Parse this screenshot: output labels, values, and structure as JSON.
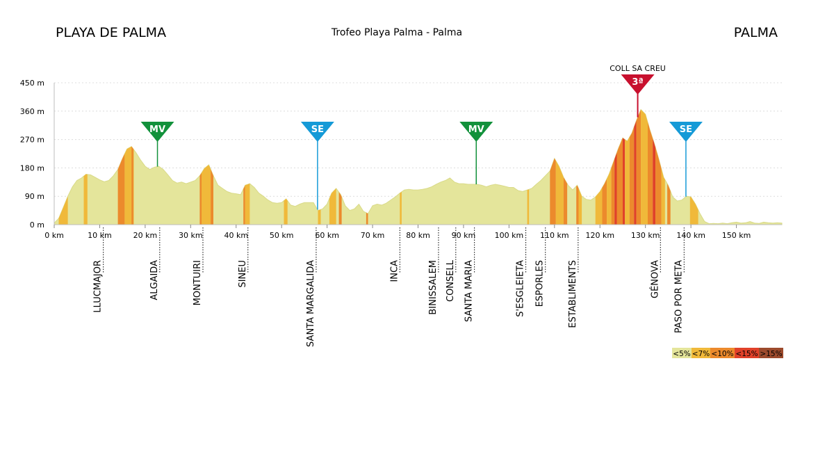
{
  "header": {
    "start": "PLAYA DE PALMA",
    "race": "Trofeo Playa Palma - Palma",
    "finish": "PALMA"
  },
  "colors": {
    "base": "#e4e59b",
    "lt7": "#f0b93a",
    "lt10": "#ec8a2c",
    "lt15": "#e0412a",
    "gt15": "#9c4a2c",
    "mv": "#12913b",
    "se": "#159ad7",
    "kom": "#c8102e"
  },
  "chart_data": {
    "type": "area",
    "xlabel": "",
    "ylabel": "",
    "xlim": [
      0,
      160
    ],
    "ylim": [
      0,
      450
    ],
    "xticks": [
      {
        "v": 0,
        "label": "0 km"
      },
      {
        "v": 10,
        "label": "10 km"
      },
      {
        "v": 20,
        "label": "20 km"
      },
      {
        "v": 30,
        "label": "30 km"
      },
      {
        "v": 40,
        "label": "40 km"
      },
      {
        "v": 50,
        "label": "50 km"
      },
      {
        "v": 60,
        "label": "60 km"
      },
      {
        "v": 70,
        "label": "70 km"
      },
      {
        "v": 80,
        "label": "80 km"
      },
      {
        "v": 90,
        "label": "90 km"
      },
      {
        "v": 100,
        "label": "100 km"
      },
      {
        "v": 110,
        "label": "110 km"
      },
      {
        "v": 120,
        "label": "120 km"
      },
      {
        "v": 130,
        "label": "130 km"
      },
      {
        "v": 140,
        "label": "140 km"
      },
      {
        "v": 150,
        "label": "150 km"
      }
    ],
    "yticks": [
      {
        "v": 0,
        "label": "0 m"
      },
      {
        "v": 90,
        "label": "90 m"
      },
      {
        "v": 180,
        "label": "180 m"
      },
      {
        "v": 270,
        "label": "270 m"
      },
      {
        "v": 360,
        "label": "360 m"
      },
      {
        "v": 450,
        "label": "450 m"
      }
    ],
    "grid": true,
    "profile": [
      [
        0,
        5
      ],
      [
        1,
        20
      ],
      [
        2,
        55
      ],
      [
        3,
        90
      ],
      [
        4,
        120
      ],
      [
        5,
        140
      ],
      [
        6,
        148
      ],
      [
        7,
        160
      ],
      [
        8,
        158
      ],
      [
        9,
        150
      ],
      [
        10,
        142
      ],
      [
        11,
        136
      ],
      [
        12,
        140
      ],
      [
        13,
        155
      ],
      [
        14,
        175
      ],
      [
        15,
        210
      ],
      [
        16,
        240
      ],
      [
        17,
        248
      ],
      [
        18,
        228
      ],
      [
        19,
        205
      ],
      [
        20,
        185
      ],
      [
        21,
        175
      ],
      [
        22,
        182
      ],
      [
        23,
        185
      ],
      [
        24,
        175
      ],
      [
        25,
        158
      ],
      [
        26,
        140
      ],
      [
        27,
        132
      ],
      [
        28,
        135
      ],
      [
        29,
        130
      ],
      [
        30,
        135
      ],
      [
        31,
        140
      ],
      [
        32,
        155
      ],
      [
        33,
        178
      ],
      [
        34,
        190
      ],
      [
        35,
        155
      ],
      [
        36,
        125
      ],
      [
        37,
        115
      ],
      [
        38,
        105
      ],
      [
        39,
        100
      ],
      [
        40,
        98
      ],
      [
        41,
        95
      ],
      [
        42,
        125
      ],
      [
        43,
        130
      ],
      [
        44,
        118
      ],
      [
        45,
        100
      ],
      [
        46,
        90
      ],
      [
        47,
        78
      ],
      [
        48,
        70
      ],
      [
        49,
        68
      ],
      [
        50,
        70
      ],
      [
        51,
        82
      ],
      [
        52,
        62
      ],
      [
        53,
        58
      ],
      [
        54,
        65
      ],
      [
        55,
        70
      ],
      [
        56,
        70
      ],
      [
        57,
        70
      ],
      [
        58,
        45
      ],
      [
        59,
        50
      ],
      [
        60,
        65
      ],
      [
        61,
        100
      ],
      [
        62,
        115
      ],
      [
        63,
        95
      ],
      [
        64,
        60
      ],
      [
        65,
        45
      ],
      [
        66,
        50
      ],
      [
        67,
        65
      ],
      [
        68,
        42
      ],
      [
        69,
        35
      ],
      [
        70,
        60
      ],
      [
        71,
        65
      ],
      [
        72,
        62
      ],
      [
        73,
        68
      ],
      [
        74,
        78
      ],
      [
        75,
        88
      ],
      [
        76,
        100
      ],
      [
        77,
        110
      ],
      [
        78,
        112
      ],
      [
        79,
        110
      ],
      [
        80,
        110
      ],
      [
        81,
        112
      ],
      [
        82,
        115
      ],
      [
        83,
        120
      ],
      [
        84,
        128
      ],
      [
        85,
        135
      ],
      [
        86,
        140
      ],
      [
        87,
        148
      ],
      [
        88,
        135
      ],
      [
        89,
        130
      ],
      [
        90,
        130
      ],
      [
        91,
        128
      ],
      [
        92,
        128
      ],
      [
        93,
        128
      ],
      [
        94,
        125
      ],
      [
        95,
        120
      ],
      [
        96,
        125
      ],
      [
        97,
        128
      ],
      [
        98,
        125
      ],
      [
        99,
        122
      ],
      [
        100,
        118
      ],
      [
        101,
        118
      ],
      [
        102,
        108
      ],
      [
        103,
        105
      ],
      [
        104,
        110
      ],
      [
        105,
        115
      ],
      [
        106,
        128
      ],
      [
        107,
        140
      ],
      [
        108,
        155
      ],
      [
        109,
        170
      ],
      [
        110,
        210
      ],
      [
        111,
        185
      ],
      [
        112,
        150
      ],
      [
        113,
        125
      ],
      [
        114,
        110
      ],
      [
        115,
        125
      ],
      [
        116,
        90
      ],
      [
        117,
        80
      ],
      [
        118,
        78
      ],
      [
        119,
        88
      ],
      [
        120,
        105
      ],
      [
        121,
        130
      ],
      [
        122,
        160
      ],
      [
        123,
        200
      ],
      [
        124,
        240
      ],
      [
        125,
        275
      ],
      [
        126,
        265
      ],
      [
        127,
        290
      ],
      [
        128,
        330
      ],
      [
        129,
        365
      ],
      [
        130,
        350
      ],
      [
        131,
        300
      ],
      [
        132,
        255
      ],
      [
        133,
        205
      ],
      [
        134,
        150
      ],
      [
        135,
        125
      ],
      [
        136,
        88
      ],
      [
        137,
        75
      ],
      [
        138,
        78
      ],
      [
        139,
        90
      ],
      [
        140,
        88
      ],
      [
        141,
        65
      ],
      [
        142,
        35
      ],
      [
        143,
        10
      ],
      [
        144,
        3
      ],
      [
        145,
        4
      ],
      [
        146,
        3
      ],
      [
        147,
        5
      ],
      [
        148,
        3
      ],
      [
        149,
        6
      ],
      [
        150,
        8
      ],
      [
        151,
        5
      ],
      [
        152,
        6
      ],
      [
        153,
        10
      ],
      [
        154,
        5
      ],
      [
        155,
        4
      ],
      [
        156,
        8
      ],
      [
        157,
        6
      ],
      [
        158,
        5
      ],
      [
        159,
        6
      ],
      [
        160,
        5
      ]
    ],
    "grade_bands": [
      {
        "from": 1,
        "to": 3,
        "grade": "lt7"
      },
      {
        "from": 6.5,
        "to": 7.3,
        "grade": "lt7"
      },
      {
        "from": 14,
        "to": 15.5,
        "grade": "lt10"
      },
      {
        "from": 15.5,
        "to": 17.5,
        "grade": "lt7"
      },
      {
        "from": 17,
        "to": 17.4,
        "grade": "lt10"
      },
      {
        "from": 32,
        "to": 32.4,
        "grade": "lt10"
      },
      {
        "from": 32.4,
        "to": 34.4,
        "grade": "lt7"
      },
      {
        "from": 34.4,
        "to": 35,
        "grade": "lt10"
      },
      {
        "from": 41.6,
        "to": 42,
        "grade": "lt10"
      },
      {
        "from": 42,
        "to": 43,
        "grade": "lt7"
      },
      {
        "from": 50.5,
        "to": 51.3,
        "grade": "lt7"
      },
      {
        "from": 58,
        "to": 58.6,
        "grade": "lt7"
      },
      {
        "from": 60.5,
        "to": 62,
        "grade": "lt7"
      },
      {
        "from": 62.6,
        "to": 63.2,
        "grade": "lt10"
      },
      {
        "from": 68.6,
        "to": 69,
        "grade": "lt10"
      },
      {
        "from": 76,
        "to": 76.4,
        "grade": "lt7"
      },
      {
        "from": 104,
        "to": 104.4,
        "grade": "lt7"
      },
      {
        "from": 109,
        "to": 110.3,
        "grade": "lt10"
      },
      {
        "from": 110.3,
        "to": 112,
        "grade": "lt7"
      },
      {
        "from": 112,
        "to": 112.8,
        "grade": "lt10"
      },
      {
        "from": 114.8,
        "to": 115.3,
        "grade": "lt10"
      },
      {
        "from": 115.3,
        "to": 116,
        "grade": "lt7"
      },
      {
        "from": 119,
        "to": 120.5,
        "grade": "lt7"
      },
      {
        "from": 120.5,
        "to": 121.5,
        "grade": "lt10"
      },
      {
        "from": 121.5,
        "to": 122.5,
        "grade": "lt7"
      },
      {
        "from": 122.5,
        "to": 123.2,
        "grade": "lt10"
      },
      {
        "from": 123.2,
        "to": 123.7,
        "grade": "lt15"
      },
      {
        "from": 123.7,
        "to": 125,
        "grade": "lt10"
      },
      {
        "from": 125,
        "to": 125.5,
        "grade": "lt15"
      },
      {
        "from": 125.5,
        "to": 126.5,
        "grade": "lt7"
      },
      {
        "from": 126.5,
        "to": 127.5,
        "grade": "lt10"
      },
      {
        "from": 127.5,
        "to": 128,
        "grade": "lt15"
      },
      {
        "from": 128,
        "to": 129,
        "grade": "lt10"
      },
      {
        "from": 129,
        "to": 130.5,
        "grade": "lt7"
      },
      {
        "from": 130.5,
        "to": 131.6,
        "grade": "lt10"
      },
      {
        "from": 131.6,
        "to": 132.2,
        "grade": "lt15"
      },
      {
        "from": 132.2,
        "to": 133.5,
        "grade": "lt10"
      },
      {
        "from": 133.5,
        "to": 134.3,
        "grade": "lt7"
      },
      {
        "from": 134.8,
        "to": 135.5,
        "grade": "lt10"
      },
      {
        "from": 139.8,
        "to": 141.6,
        "grade": "lt7"
      }
    ],
    "markers": [
      {
        "km": 22.7,
        "label": "MV",
        "kind": "mv",
        "line_top": 270
      },
      {
        "km": 57.9,
        "label": "SE",
        "kind": "se",
        "line_top": 270
      },
      {
        "km": 92.8,
        "label": "MV",
        "kind": "mv",
        "line_top": 270
      },
      {
        "km": 128.3,
        "label": "3ª",
        "kind": "kom",
        "line_top": 380,
        "title": "COLL SA CREU"
      },
      {
        "km": 138.9,
        "label": "SE",
        "kind": "se",
        "line_top": 270
      }
    ],
    "towns": [
      {
        "km": 10.8,
        "name": "LLUCMAJOR"
      },
      {
        "km": 23.2,
        "name": "ALGAIDA"
      },
      {
        "km": 32.7,
        "name": "MONTUIRI"
      },
      {
        "km": 42.6,
        "name": "SINEU"
      },
      {
        "km": 57.6,
        "name": "SANTA MARGALIDA"
      },
      {
        "km": 76.0,
        "name": "INCA"
      },
      {
        "km": 84.5,
        "name": "BINISSALEM"
      },
      {
        "km": 88.3,
        "name": "CONSELL"
      },
      {
        "km": 92.4,
        "name": "SANTA MARIA"
      },
      {
        "km": 103.7,
        "name": "S'ESGLEIETA"
      },
      {
        "km": 108.0,
        "name": "ESPORLES"
      },
      {
        "km": 115.2,
        "name": "ESTABLIMENTS"
      },
      {
        "km": 133.3,
        "name": "GÉNOVA"
      },
      {
        "km": 138.5,
        "name": "PASO POR META"
      }
    ],
    "legend": [
      {
        "label": "<5%",
        "grade": "base"
      },
      {
        "label": "<7%",
        "grade": "lt7"
      },
      {
        "label": "<10%",
        "grade": "lt10"
      },
      {
        "label": "<15%",
        "grade": "lt15"
      },
      {
        "label": ">15%",
        "grade": "gt15"
      }
    ]
  }
}
